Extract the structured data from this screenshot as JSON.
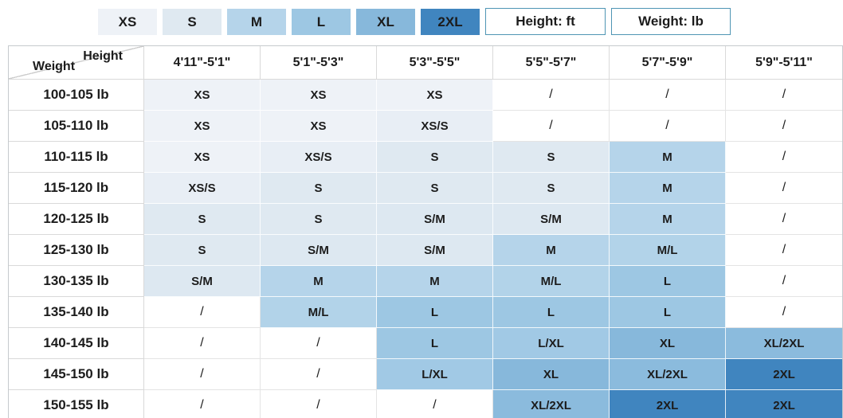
{
  "colors": {
    "unit_box_border": "#4f95b4",
    "grid_line": "#d9d9d9",
    "empty_cell": "#ffffff",
    "size_fill": {
      "XS": "#eef2f7",
      "XS/S": "#e8eef5",
      "S": "#dfe9f1",
      "S/M": "#dde8f1",
      "M": "#b5d4ea",
      "M/L": "#b2d3e9",
      "L": "#9dc7e3",
      "L/XL": "#a1c9e5",
      "XL": "#87b8db",
      "XL/2XL": "#8bbbdd",
      "2XL": "#4085bf"
    }
  },
  "chart_data": {
    "type": "heatmap",
    "title": "",
    "x_label": "Height",
    "y_label": "Weight",
    "legend": [
      "XS",
      "S",
      "M",
      "L",
      "XL",
      "2XL"
    ],
    "units": {
      "height_unit_label": "Height: ft",
      "weight_unit_label": "Weight: lb"
    },
    "x_categories": [
      "4'11\"-5'1\"",
      "5'1\"-5'3\"",
      "5'3\"-5'5\"",
      "5'5\"-5'7\"",
      "5'7\"-5'9\"",
      "5'9\"-5'11\""
    ],
    "y_categories": [
      "100-105 lb",
      "105-110 lb",
      "110-115 lb",
      "115-120 lb",
      "120-125 lb",
      "125-130 lb",
      "130-135 lb",
      "135-140 lb",
      "140-145 lb",
      "145-150 lb",
      "150-155 lb"
    ],
    "values": [
      [
        "XS",
        "XS",
        "XS",
        "/",
        "/",
        "/"
      ],
      [
        "XS",
        "XS",
        "XS/S",
        "/",
        "/",
        "/"
      ],
      [
        "XS",
        "XS/S",
        "S",
        "S",
        "M",
        "/"
      ],
      [
        "XS/S",
        "S",
        "S",
        "S",
        "M",
        "/"
      ],
      [
        "S",
        "S",
        "S/M",
        "S/M",
        "M",
        "/"
      ],
      [
        "S",
        "S/M",
        "S/M",
        "M",
        "M/L",
        "/"
      ],
      [
        "S/M",
        "M",
        "M",
        "M/L",
        "L",
        "/"
      ],
      [
        "/",
        "M/L",
        "L",
        "L",
        "L",
        "/"
      ],
      [
        "/",
        "/",
        "L",
        "L/XL",
        "XL",
        "XL/2XL"
      ],
      [
        "/",
        "/",
        "L/XL",
        "XL",
        "XL/2XL",
        "2XL"
      ],
      [
        "/",
        "/",
        "/",
        "XL/2XL",
        "2XL",
        "2XL"
      ]
    ]
  }
}
